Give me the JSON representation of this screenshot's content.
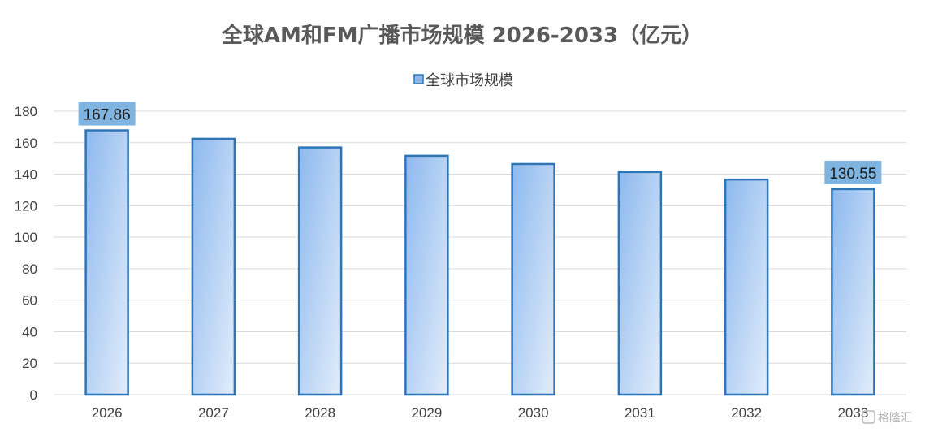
{
  "chart_data": {
    "type": "bar",
    "title": "全球AM和FM广播市场规模 2026-2033（亿元）",
    "xlabel": "",
    "ylabel": "",
    "categories": [
      "2026",
      "2027",
      "2028",
      "2029",
      "2030",
      "2031",
      "2032",
      "2033"
    ],
    "series": [
      {
        "name": "全球市场规模",
        "values": [
          167.86,
          162.5,
          157.0,
          151.7,
          146.5,
          141.4,
          136.6,
          130.55
        ]
      }
    ],
    "data_labels": [
      {
        "category": "2026",
        "text": "167.86"
      },
      {
        "category": "2033",
        "text": "130.55"
      }
    ],
    "ylim": [
      0,
      180
    ],
    "yticks": [
      0,
      20,
      40,
      60,
      80,
      100,
      120,
      140,
      160,
      180
    ],
    "grid": true,
    "legend_position": "top-center",
    "colors": {
      "bar_fill_start": "#8db9ee",
      "bar_fill_end": "#e2edfb",
      "bar_stroke": "#2e75b6",
      "label_box": "#7fb4e0",
      "gridline": "#d9d9d9"
    }
  },
  "watermark": {
    "text": "格隆汇"
  }
}
